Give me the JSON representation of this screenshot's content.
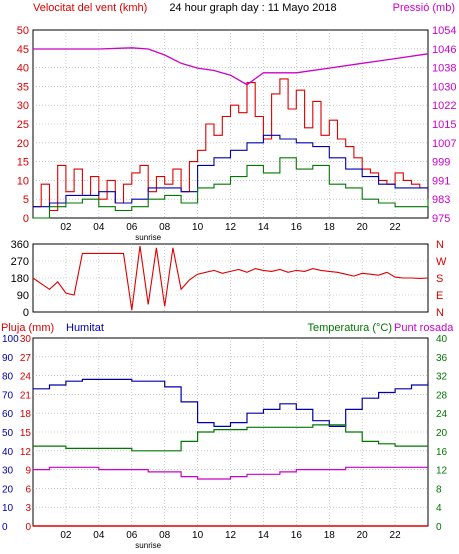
{
  "header": {
    "left": "Velocitat del vent (kmh)",
    "center": "24 hour graph day : 11 Mayo 2018",
    "right": "Pressió (mb)"
  },
  "time_ticks": [
    "02",
    "04",
    "06",
    "08",
    "10",
    "12",
    "14",
    "16",
    "18",
    "20",
    "22"
  ],
  "sunrise_label": "sunrise",
  "colors": {
    "wind": "#dd0000",
    "gust": "#dd0000",
    "avg_wind": "#0000aa",
    "wind_min": "#007700",
    "pressure": "#cc00cc",
    "direction": "#dd0000",
    "humidity": "#0000aa",
    "temperature": "#007700",
    "dewpoint": "#cc00cc",
    "rain": "#dd0000",
    "blue_text": "#0000aa",
    "red_text": "#dd0000",
    "green_text": "#007700"
  },
  "chart_data": [
    {
      "type": "line",
      "name": "wind-pressure",
      "title": "24 hour graph day : 11 Mayo 2018",
      "left_axis_label": "Velocitat del vent (kmh)",
      "right_axis_label": "Pressió (mb)",
      "left_ticks": [
        "50",
        "45",
        "40",
        "35",
        "30",
        "25",
        "20",
        "15",
        "10",
        "5",
        "0"
      ],
      "right_ticks": [
        "1054",
        "1046",
        "1038",
        "1030",
        "1022",
        "1015",
        "1007",
        "999",
        "991",
        "983",
        "975"
      ],
      "ylim_left": [
        0,
        50
      ],
      "ylim_right": [
        975,
        1054
      ],
      "x_range_hours": [
        0,
        24
      ],
      "series": [
        {
          "key": "gust",
          "color_key": "gust",
          "axis": "left",
          "x": [
            0,
            0.5,
            1,
            1.5,
            2,
            2.5,
            3,
            3.5,
            4,
            4.5,
            5,
            5.5,
            6,
            6.5,
            7,
            7.5,
            8,
            8.5,
            9,
            9.5,
            10,
            10.5,
            11,
            11.5,
            12,
            12.5,
            13,
            13.5,
            14,
            14.5,
            15,
            15.5,
            16,
            16.5,
            17,
            17.5,
            18,
            18.5,
            19,
            19.5,
            20,
            20.5,
            21,
            21.5,
            22,
            22.5,
            23,
            23.5,
            24
          ],
          "y": [
            3,
            9,
            2,
            14,
            7,
            13,
            6,
            11,
            5,
            10,
            4,
            9,
            12,
            14,
            7,
            11,
            9,
            13,
            7,
            15,
            18,
            25,
            22,
            27,
            30,
            28,
            36,
            27,
            21,
            33,
            37,
            29,
            34,
            24,
            31,
            22,
            26,
            21,
            19,
            16,
            13,
            12,
            10,
            9,
            12,
            10,
            9,
            8,
            7
          ]
        },
        {
          "key": "avg_wind",
          "color_key": "avg_wind",
          "axis": "left",
          "x": [
            0,
            1,
            2,
            3,
            4,
            5,
            6,
            7,
            8,
            9,
            10,
            11,
            12,
            13,
            14,
            15,
            16,
            17,
            18,
            19,
            20,
            21,
            22,
            23,
            24
          ],
          "y": [
            3,
            4,
            6,
            6,
            7,
            4,
            5,
            8,
            8,
            7,
            14,
            16,
            18,
            20,
            22,
            21,
            20,
            19,
            16,
            13,
            11,
            9,
            8,
            8,
            7
          ]
        },
        {
          "key": "wind_min",
          "color_key": "wind_min",
          "axis": "left",
          "x": [
            0,
            1,
            2,
            3,
            4,
            5,
            6,
            7,
            8,
            9,
            10,
            11,
            12,
            13,
            14,
            15,
            16,
            17,
            18,
            19,
            20,
            21,
            22,
            23,
            24
          ],
          "y": [
            0,
            3,
            4,
            5,
            3,
            2,
            3,
            5,
            6,
            4,
            8,
            9,
            11,
            14,
            12,
            16,
            13,
            14,
            9,
            8,
            5,
            4,
            3,
            3,
            5
          ]
        },
        {
          "key": "pressure",
          "color_key": "pressure",
          "axis": "right",
          "x": [
            0,
            2,
            4,
            6,
            7,
            8,
            9,
            10,
            11,
            12,
            13,
            14,
            16,
            18,
            20,
            22,
            24
          ],
          "y": [
            1046,
            1046,
            1046,
            1046.5,
            1046,
            1043.5,
            1040,
            1038,
            1037,
            1035,
            1031,
            1036,
            1036,
            1038,
            1040,
            1042,
            1044
          ]
        }
      ]
    },
    {
      "type": "scatter",
      "name": "wind-direction",
      "ylabel": "",
      "left_ticks": [
        "360",
        "270",
        "180",
        "90",
        "0"
      ],
      "right_ticks": [
        "N",
        "W",
        "S",
        "E",
        "N"
      ],
      "ylim": [
        0,
        360
      ],
      "series": [
        {
          "key": "direction",
          "color_key": "direction",
          "x": [
            0,
            0.5,
            1,
            1.5,
            2,
            2.5,
            3,
            3.5,
            4,
            4.5,
            5,
            5.5,
            6,
            6.5,
            7,
            7.5,
            8,
            8.5,
            9,
            9.5,
            10,
            10.5,
            11,
            11.5,
            12,
            12.5,
            13,
            13.5,
            14,
            14.5,
            15,
            15.5,
            16,
            16.5,
            17,
            17.5,
            18,
            18.5,
            19,
            19.5,
            20,
            20.5,
            21,
            21.5,
            22,
            22.5,
            23,
            23.5,
            24
          ],
          "y": [
            180,
            150,
            120,
            160,
            100,
            90,
            310,
            310,
            310,
            310,
            310,
            310,
            10,
            350,
            40,
            340,
            30,
            340,
            120,
            170,
            200,
            210,
            220,
            205,
            215,
            225,
            210,
            230,
            220,
            215,
            225,
            210,
            220,
            215,
            230,
            220,
            215,
            210,
            200,
            190,
            205,
            200,
            195,
            210,
            185,
            180,
            180,
            178,
            180
          ]
        }
      ]
    },
    {
      "type": "line",
      "name": "humidity-temperature-rain",
      "labels": {
        "rain": "Pluja (mm)",
        "humidity": "Humitat",
        "temperature": "Temperatura (°C)",
        "dewpoint": "Punt rosada"
      },
      "rain_ticks": [
        "30",
        "27",
        "24",
        "21",
        "18",
        "15",
        "12",
        "9",
        "6",
        "3",
        "0"
      ],
      "humidity_ticks": [
        "100",
        "90",
        "80",
        "70",
        "60",
        "50",
        "40",
        "30",
        "20",
        "10",
        "0"
      ],
      "temp_ticks": [
        "40",
        "36",
        "32",
        "28",
        "24",
        "20",
        "16",
        "12",
        "8",
        "4",
        "0"
      ],
      "ylim_humidity": [
        0,
        100
      ],
      "ylim_temp": [
        0,
        40
      ],
      "ylim_rain": [
        0,
        30
      ],
      "series": [
        {
          "key": "humidity",
          "color_key": "humidity",
          "axis": "humidity",
          "x": [
            0,
            1,
            2,
            3,
            4,
            5,
            6,
            7,
            8,
            9,
            10,
            11,
            12,
            13,
            14,
            15,
            16,
            17,
            18,
            19,
            20,
            21,
            22,
            23,
            24
          ],
          "y": [
            73,
            75,
            77,
            78,
            78,
            78,
            77,
            77,
            74,
            66,
            55,
            53,
            55,
            60,
            62,
            65,
            62,
            56,
            53,
            62,
            68,
            71,
            73,
            75,
            77
          ]
        },
        {
          "key": "temperature",
          "color_key": "temperature",
          "axis": "temp",
          "x": [
            0,
            1,
            2,
            3,
            4,
            5,
            6,
            7,
            8,
            9,
            10,
            11,
            12,
            13,
            14,
            15,
            16,
            17,
            18,
            19,
            20,
            21,
            22,
            23,
            24
          ],
          "y": [
            17,
            17,
            16.5,
            16.5,
            16.5,
            16.5,
            16,
            16,
            16,
            18,
            20,
            20.5,
            20.5,
            21,
            21,
            21,
            21,
            21.5,
            21.5,
            20,
            18,
            17.5,
            17,
            17,
            17
          ]
        },
        {
          "key": "dewpoint",
          "color_key": "dewpoint",
          "axis": "temp",
          "x": [
            0,
            1,
            2,
            3,
            4,
            5,
            6,
            7,
            8,
            9,
            10,
            11,
            12,
            13,
            14,
            15,
            16,
            17,
            18,
            19,
            20,
            21,
            22,
            23,
            24
          ],
          "y": [
            12,
            12.5,
            12.5,
            12.5,
            12,
            12,
            12,
            11.5,
            11.5,
            10.5,
            10,
            10,
            10.5,
            11,
            11,
            11.5,
            12,
            12,
            12,
            12.5,
            12.5,
            12.5,
            12.5,
            12.5,
            12.5
          ]
        },
        {
          "key": "rain",
          "color_key": "rain",
          "axis": "rain",
          "x": [
            0,
            24
          ],
          "y": [
            0,
            0
          ]
        }
      ]
    }
  ]
}
